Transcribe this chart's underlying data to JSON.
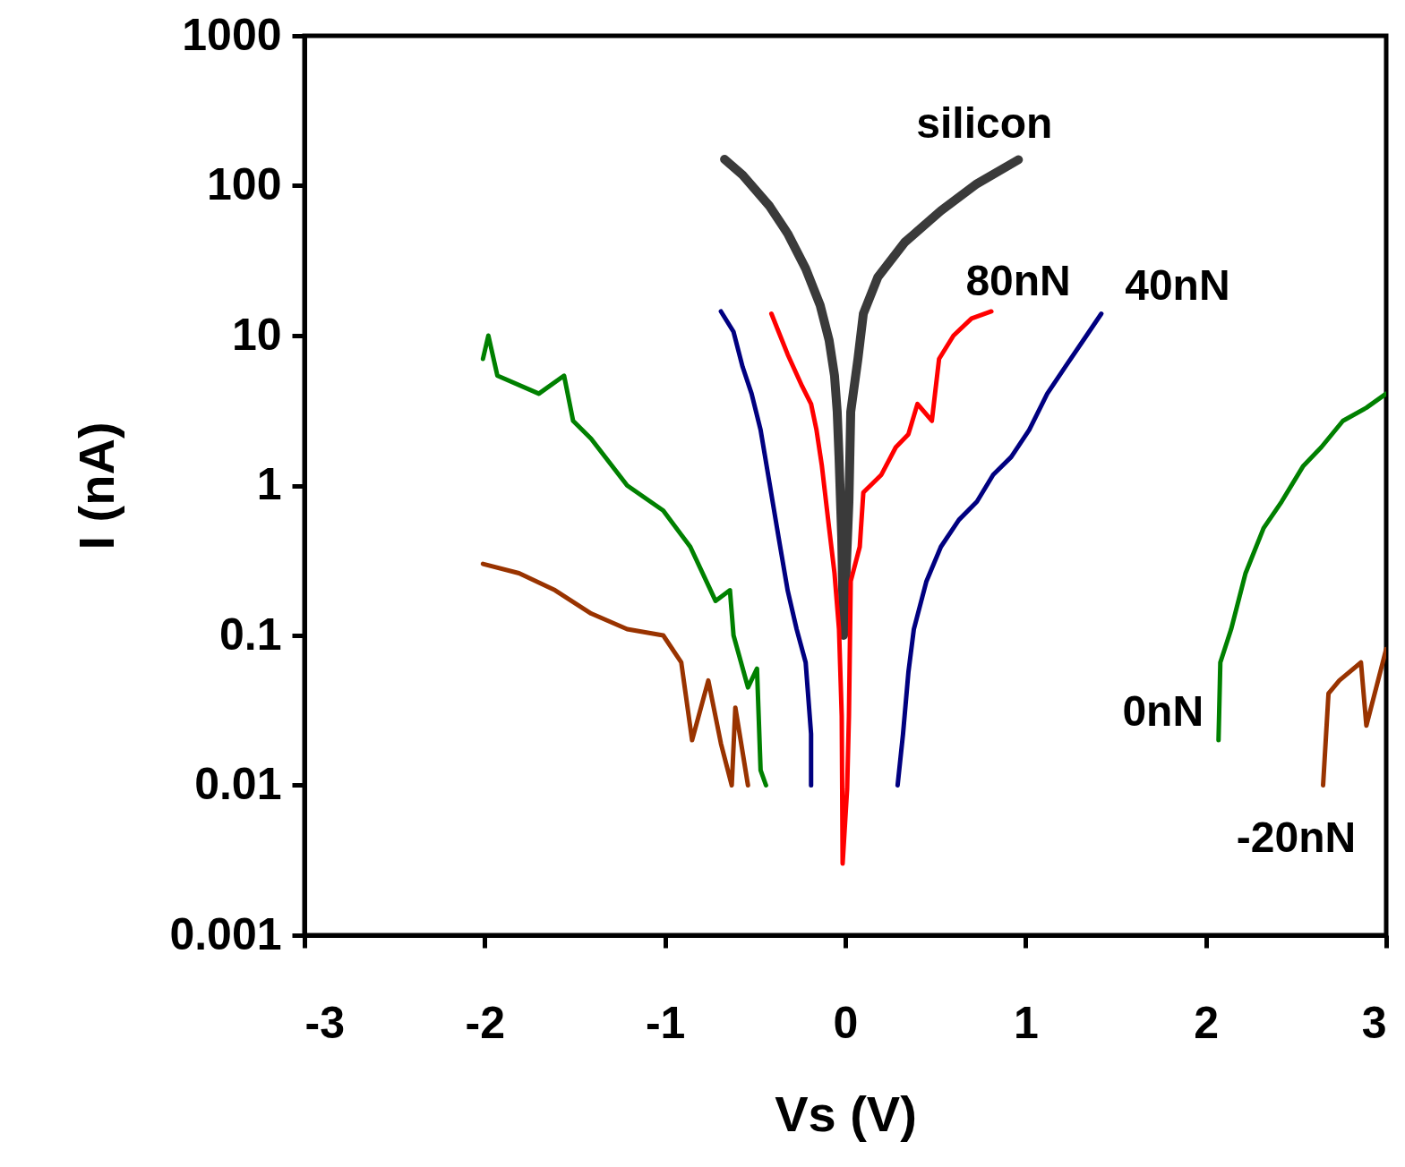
{
  "chart_data": {
    "type": "line",
    "xlabel": "Vs (V)",
    "ylabel": "I (nA)",
    "log": "y",
    "grid": false,
    "xlim": [
      -3,
      3
    ],
    "xticks": [
      -3,
      -2,
      -1,
      0,
      1,
      2,
      3
    ],
    "ylim": [
      0.001,
      1000
    ],
    "yticks": [
      0.001,
      0.01,
      0.1,
      1,
      10,
      100,
      1000
    ],
    "series": [
      {
        "name": "silicon",
        "color": "#3a3a3a",
        "x": [
          -0.67,
          -0.57,
          -0.42,
          -0.32,
          -0.22,
          -0.14,
          -0.09,
          -0.06,
          -0.045,
          -0.035,
          -0.02,
          -0.01,
          0.02,
          0.03,
          0.07,
          0.1,
          0.18,
          0.33,
          0.53,
          0.73,
          0.96
        ],
        "values": [
          150,
          118,
          73,
          48,
          28,
          16,
          9.3,
          5.4,
          3.1,
          1.55,
          0.45,
          0.1,
          0.78,
          3.1,
          7,
          14,
          24.5,
          42,
          68,
          103,
          149
        ]
      },
      {
        "name": "80nN",
        "color": "#ff0000",
        "x": [
          -0.41,
          -0.37,
          -0.32,
          -0.24,
          -0.19,
          -0.16,
          -0.13,
          -0.09,
          -0.06,
          -0.035,
          -0.02,
          -0.015,
          0.01,
          0.02,
          0.03,
          0.08,
          0.1,
          0.2,
          0.28,
          0.35,
          0.4,
          0.48,
          0.52,
          0.6,
          0.7,
          0.81
        ],
        "values": [
          14,
          10.6,
          7.5,
          4.6,
          3.5,
          2.35,
          1.35,
          0.52,
          0.26,
          0.11,
          0.029,
          0.003,
          0.0095,
          0.029,
          0.23,
          0.39,
          0.9,
          1.18,
          1.8,
          2.2,
          3.5,
          2.7,
          7,
          10,
          13,
          14.5
        ]
      },
      {
        "name": "40nN",
        "color": "#000080",
        "x": [
          -0.69,
          -0.62,
          -0.57,
          -0.52,
          -0.47,
          -0.42,
          -0.37,
          -0.32,
          -0.27,
          -0.22,
          -0.19,
          -0.19,
          0.05,
          0.29,
          0.32,
          0.35,
          0.38,
          0.45,
          0.53,
          0.63,
          0.73,
          0.82,
          0.92,
          1.02,
          1.12,
          1.22,
          1.32,
          1.42
        ],
        "values": [
          14.5,
          10.6,
          6.2,
          4.1,
          2.35,
          1.03,
          0.45,
          0.2,
          0.11,
          0.066,
          0.022,
          0.01,
          null,
          0.01,
          0.022,
          0.057,
          0.11,
          0.23,
          0.39,
          0.59,
          0.78,
          1.18,
          1.55,
          2.35,
          4.1,
          6.2,
          9.3,
          14
        ]
      },
      {
        "name": "0nN",
        "color": "#008000",
        "x": [
          -2.01,
          -1.98,
          -1.93,
          -1.7,
          -1.56,
          -1.51,
          -1.41,
          -1.21,
          -1.01,
          -0.86,
          -0.72,
          -0.64,
          -0.62,
          -0.54,
          -0.49,
          -0.47,
          -0.44,
          0.8,
          2.07,
          2.08,
          2.14,
          2.22,
          2.32,
          2.42,
          2.54,
          2.64,
          2.76,
          2.89,
          3.0
        ],
        "values": [
          7,
          10,
          5.4,
          4.1,
          5.4,
          2.7,
          2.05,
          1.0,
          0.68,
          0.39,
          0.17,
          0.2,
          0.1,
          0.045,
          0.06,
          0.0126,
          0.01,
          null,
          0.02,
          0.066,
          0.11,
          0.26,
          0.52,
          0.78,
          1.35,
          1.8,
          2.7,
          3.3,
          4.1
        ]
      },
      {
        "name": "-20nN",
        "color": "#993300",
        "x": [
          -2.01,
          -1.81,
          -1.61,
          -1.41,
          -1.21,
          -1.01,
          -0.91,
          -0.85,
          -0.76,
          -0.69,
          -0.63,
          -0.61,
          -0.54,
          1.0,
          2.65,
          2.68,
          2.74,
          2.86,
          2.89,
          3.0
        ],
        "values": [
          0.3,
          0.26,
          0.2,
          0.14,
          0.11,
          0.1,
          0.066,
          0.02,
          0.05,
          0.019,
          0.01,
          0.033,
          0.01,
          null,
          0.01,
          0.041,
          0.05,
          0.066,
          0.025,
          0.081
        ]
      }
    ]
  }
}
